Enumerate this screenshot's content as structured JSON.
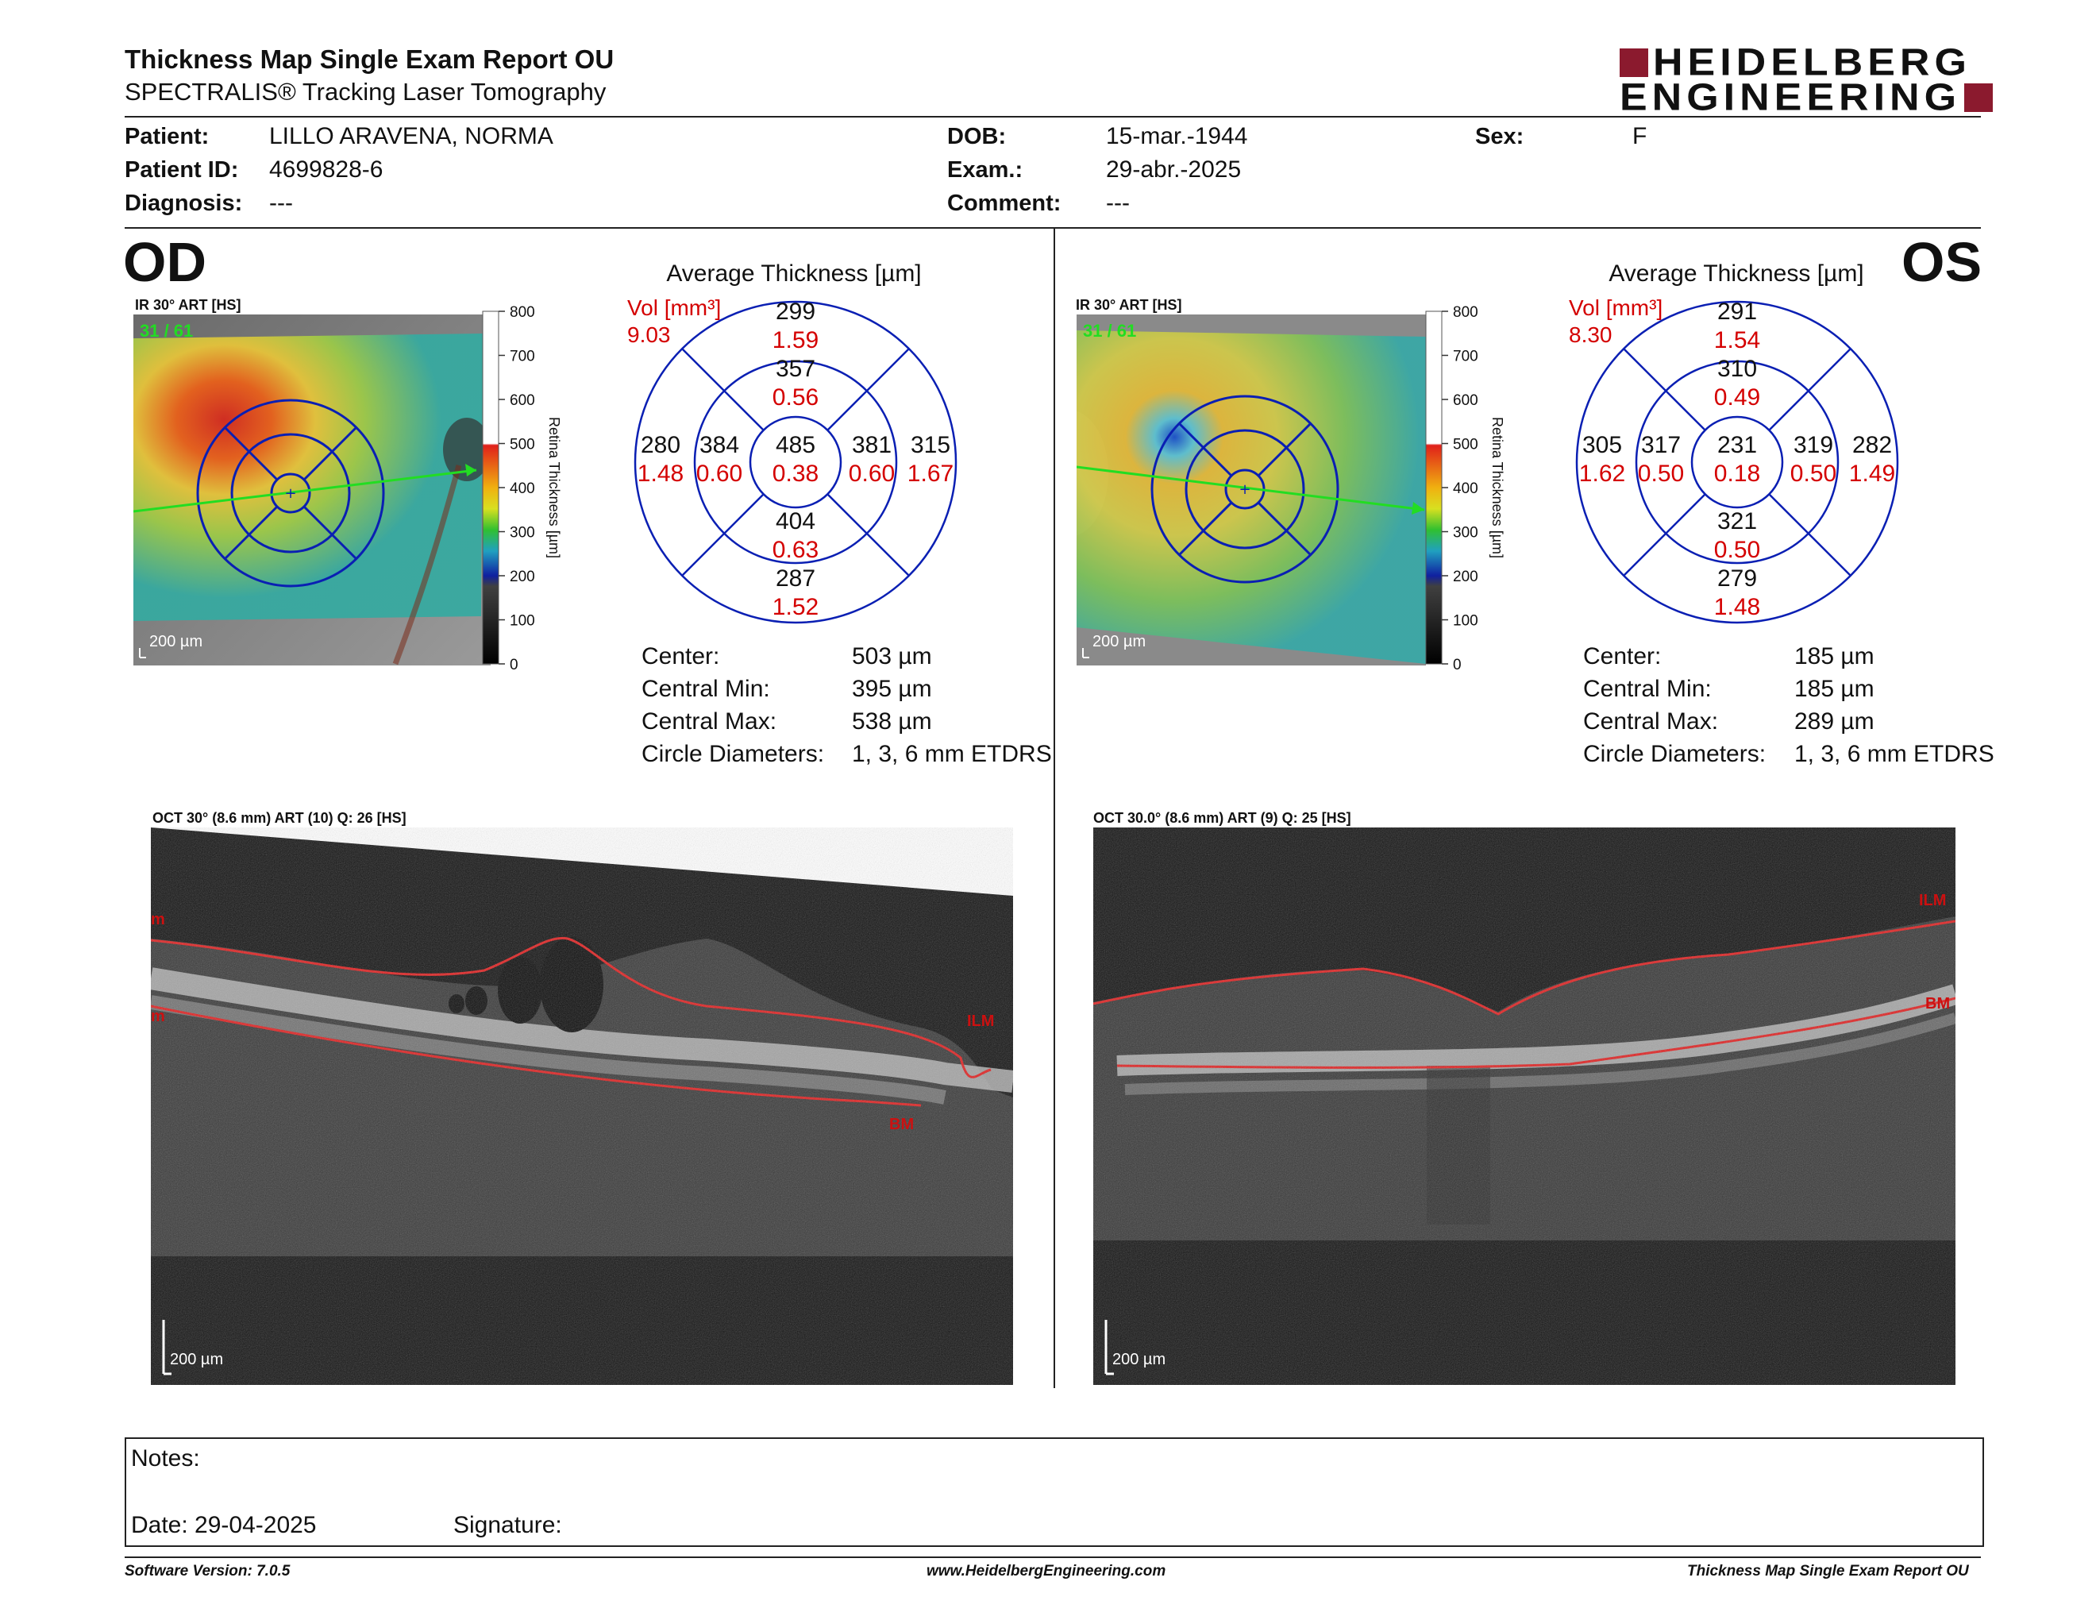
{
  "header": {
    "title": "Thickness Map Single Exam Report OU",
    "subtitle": "SPECTRALIS® Tracking Laser Tomography",
    "logo_line1": "HEIDELBERG",
    "logo_line2": "ENGINEERING"
  },
  "patient": {
    "patient_label": "Patient:",
    "patient_value": "LILLO ARAVENA, NORMA",
    "id_label": "Patient ID:",
    "id_value": "4699828-6",
    "diagnosis_label": "Diagnosis:",
    "diagnosis_value": "---",
    "dob_label": "DOB:",
    "dob_value": "15-mar.-1944",
    "exam_label": "Exam.:",
    "exam_value": "29-abr.-2025",
    "comment_label": "Comment:",
    "comment_value": "---",
    "sex_label": "Sex:",
    "sex_value": "F"
  },
  "od": {
    "eye_label": "OD",
    "ir_label": "IR 30° ART [HS]",
    "frame_label": "31 / 61",
    "scale_text": "200 µm",
    "avg_title": "Average Thickness [µm]",
    "vol_label": "Vol [mm³]",
    "vol_value": "9.03",
    "grid": {
      "sup_outer": "299",
      "sup_outer_vol": "1.59",
      "sup_inner": "357",
      "sup_inner_vol": "0.56",
      "temp_outer": "280",
      "temp_outer_vol": "1.48",
      "temp_inner": "384",
      "temp_inner_vol": "0.60",
      "center": "485",
      "center_vol": "0.38",
      "nas_inner": "381",
      "nas_inner_vol": "0.60",
      "nas_outer": "315",
      "nas_outer_vol": "1.67",
      "inf_inner": "404",
      "inf_inner_vol": "0.63",
      "inf_outer": "287",
      "inf_outer_vol": "1.52"
    },
    "stats": {
      "center_label": "Center:",
      "center_value": "503 µm",
      "min_label": "Central Min:",
      "min_value": "395 µm",
      "max_label": "Central Max:",
      "max_value": "538 µm",
      "circ_label": "Circle Diameters:",
      "circ_value": "1, 3, 6 mm ETDRS"
    },
    "oct_label": "OCT 30° (8.6 mm) ART (10) Q: 26 [HS]",
    "oct_scale": "200 µm",
    "ilm_label": "ILM",
    "bm_label": "BM",
    "ilm_edge": "m",
    "bm_edge": "m"
  },
  "os": {
    "eye_label": "OS",
    "ir_label": "IR 30° ART [HS]",
    "frame_label": "31 / 61",
    "scale_text": "200 µm",
    "avg_title": "Average Thickness [µm]",
    "vol_label": "Vol [mm³]",
    "vol_value": "8.30",
    "grid": {
      "sup_outer": "291",
      "sup_outer_vol": "1.54",
      "sup_inner": "310",
      "sup_inner_vol": "0.49",
      "temp_outer": "305",
      "temp_outer_vol": "1.62",
      "temp_inner": "317",
      "temp_inner_vol": "0.50",
      "center": "231",
      "center_vol": "0.18",
      "nas_inner": "319",
      "nas_inner_vol": "0.50",
      "nas_outer": "282",
      "nas_outer_vol": "1.49",
      "inf_inner": "321",
      "inf_inner_vol": "0.50",
      "inf_outer": "279",
      "inf_outer_vol": "1.48"
    },
    "stats": {
      "center_label": "Center:",
      "center_value": "185 µm",
      "min_label": "Central Min:",
      "min_value": "185 µm",
      "max_label": "Central Max:",
      "max_value": "289 µm",
      "circ_label": "Circle Diameters:",
      "circ_value": "1, 3, 6 mm ETDRS"
    },
    "oct_label": "OCT 30.0° (8.6 mm) ART (9) Q: 25 [HS]",
    "oct_scale": "200 µm",
    "ilm_label": "ILM",
    "bm_label": "BM"
  },
  "colorbar": {
    "ticks": [
      "800",
      "700",
      "600",
      "500",
      "400",
      "300",
      "200",
      "100",
      "0"
    ],
    "axis_label": "Retina Thickness [µm]"
  },
  "notes": {
    "notes_label": "Notes:",
    "date_label": "Date: 29-04-2025",
    "signature_label": "Signature:"
  },
  "footer": {
    "software": "Software Version: 7.0.5",
    "website": "www.HeidelbergEngineering.com",
    "report_name": "Thickness Map Single Exam Report OU"
  },
  "colors": {
    "accent_red": "#d40000",
    "grid_blue": "#0000cc",
    "logo_red": "#8b1a2e",
    "frame_green": "#22dd22"
  }
}
